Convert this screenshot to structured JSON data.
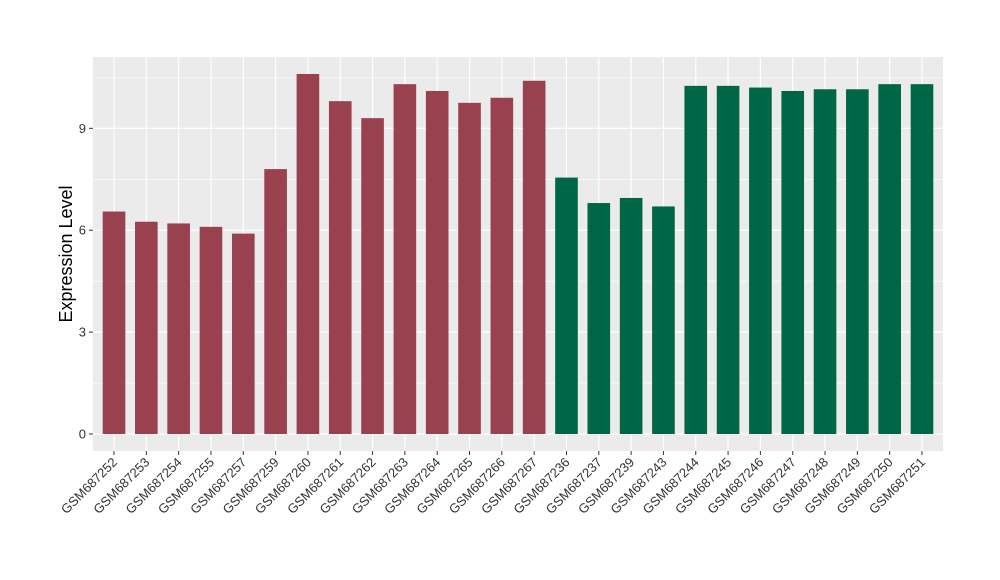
{
  "chart_data": {
    "type": "bar",
    "title": "",
    "xlabel": "",
    "ylabel": "Expression Level",
    "ylim": [
      -0.5,
      11.1
    ],
    "yticks": [
      0,
      3,
      6,
      9
    ],
    "grid": true,
    "legend": "none",
    "categories": [
      "GSM687252",
      "GSM687253",
      "GSM687254",
      "GSM687255",
      "GSM687257",
      "GSM687259",
      "GSM687260",
      "GSM687261",
      "GSM687262",
      "GSM687263",
      "GSM687264",
      "GSM687265",
      "GSM687266",
      "GSM687267",
      "GSM687236",
      "GSM687237",
      "GSM687239",
      "GSM687243",
      "GSM687244",
      "GSM687245",
      "GSM687246",
      "GSM687247",
      "GSM687248",
      "GSM687249",
      "GSM687250",
      "GSM687251"
    ],
    "values": [
      6.55,
      6.25,
      6.2,
      6.1,
      5.9,
      7.8,
      10.6,
      9.8,
      9.3,
      10.3,
      10.1,
      9.75,
      9.9,
      10.4,
      7.55,
      6.8,
      6.95,
      6.7,
      10.25,
      10.25,
      10.2,
      10.1,
      10.15,
      10.15,
      10.3,
      10.3
    ],
    "groups": [
      "a",
      "a",
      "a",
      "a",
      "a",
      "a",
      "a",
      "a",
      "a",
      "a",
      "a",
      "a",
      "a",
      "a",
      "b",
      "b",
      "b",
      "b",
      "b",
      "b",
      "b",
      "b",
      "b",
      "b",
      "b",
      "b"
    ],
    "group_colors": {
      "a": "#9a4150",
      "b": "#006646"
    },
    "panel_background": "#ebebeb",
    "gridline_color": "#ffffff"
  }
}
